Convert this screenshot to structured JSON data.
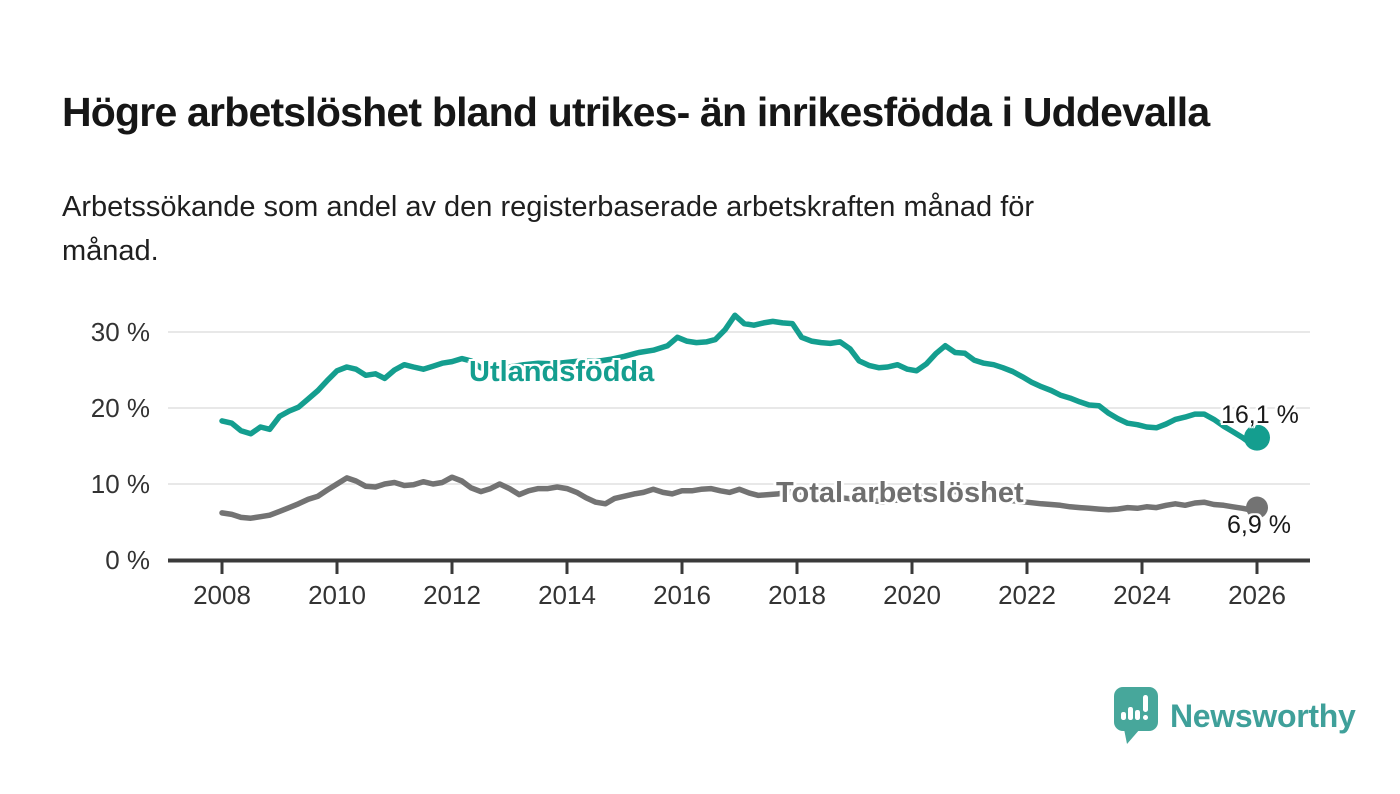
{
  "header": {
    "title": "Högre arbetslöshet bland utrikes- än inrikesfödda i Uddevalla",
    "subtitle": "Arbetssökande som andel av den registerbaserade arbetskraften månad för månad.",
    "subtitle_lines": [
      "Arbetssökande som andel av den registerbaserade arbetskraften månad för",
      "månad."
    ]
  },
  "colors": {
    "teal_series": "#149E8F",
    "gray_series": "#737373",
    "grid": "#E0E0E0",
    "axis": "#3A3A3A",
    "tick_text": "#333333",
    "title_text": "#161616",
    "end_label_text": "#1A1A1A",
    "brand_teal": "#3FA09A",
    "background": "#FFFFFF"
  },
  "chart_data": {
    "type": "line",
    "title": "Högre arbetslöshet bland utrikes- än inrikesfödda i Uddevalla",
    "xlabel": "",
    "ylabel": "Arbetssökande som andel av den registerbaserade arbetskraften (%)",
    "grid": true,
    "legend_position": "inline-labels",
    "x_axis": {
      "ticks": [
        2008,
        2010,
        2012,
        2014,
        2016,
        2018,
        2020,
        2022,
        2024,
        2026
      ],
      "tick_labels": [
        "2008",
        "2010",
        "2012",
        "2014",
        "2016",
        "2018",
        "2020",
        "2022",
        "2024",
        "2026"
      ],
      "range": [
        2007.05,
        2026.9
      ]
    },
    "y_axis": {
      "ticks": [
        0,
        10,
        20,
        30
      ],
      "tick_labels": [
        "0 %",
        "10 %",
        "20 %",
        "30 %"
      ],
      "range": [
        0,
        33
      ],
      "unit": "%"
    },
    "series": [
      {
        "name": "Utlandsfödda",
        "color": "#149E8F",
        "end_label": "16,1 %",
        "end_value": 16.1,
        "points": [
          [
            2008,
            18.3
          ],
          [
            2008.17,
            18
          ],
          [
            2008.33,
            17
          ],
          [
            2008.5,
            16.6
          ],
          [
            2008.67,
            17.5
          ],
          [
            2008.83,
            17.2
          ],
          [
            2009,
            18.9
          ],
          [
            2009.17,
            19.6
          ],
          [
            2009.33,
            20.1
          ],
          [
            2009.5,
            21.2
          ],
          [
            2009.67,
            22.3
          ],
          [
            2009.83,
            23.6
          ],
          [
            2010,
            24.9
          ],
          [
            2010.17,
            25.4
          ],
          [
            2010.33,
            25.1
          ],
          [
            2010.5,
            24.3
          ],
          [
            2010.67,
            24.5
          ],
          [
            2010.83,
            23.9
          ],
          [
            2011,
            25
          ],
          [
            2011.17,
            25.7
          ],
          [
            2011.33,
            25.4
          ],
          [
            2011.5,
            25.1
          ],
          [
            2011.67,
            25.5
          ],
          [
            2011.83,
            25.9
          ],
          [
            2012,
            26.1
          ],
          [
            2012.17,
            26.5
          ],
          [
            2012.33,
            26.2
          ],
          [
            2012.5,
            25.3
          ],
          [
            2012.67,
            24.9
          ],
          [
            2012.83,
            25.1
          ],
          [
            2013,
            25.4
          ],
          [
            2013.25,
            25.7
          ],
          [
            2013.5,
            25.9
          ],
          [
            2013.75,
            25.8
          ],
          [
            2014,
            26
          ],
          [
            2014.25,
            26.2
          ],
          [
            2014.5,
            26.1
          ],
          [
            2014.75,
            26.4
          ],
          [
            2015,
            26.8
          ],
          [
            2015.25,
            27.3
          ],
          [
            2015.5,
            27.6
          ],
          [
            2015.75,
            28.2
          ],
          [
            2015.92,
            29.3
          ],
          [
            2016.08,
            28.8
          ],
          [
            2016.25,
            28.6
          ],
          [
            2016.42,
            28.7
          ],
          [
            2016.58,
            29
          ],
          [
            2016.75,
            30.3
          ],
          [
            2016.92,
            32.2
          ],
          [
            2017.08,
            31.1
          ],
          [
            2017.25,
            30.9
          ],
          [
            2017.42,
            31.2
          ],
          [
            2017.58,
            31.4
          ],
          [
            2017.75,
            31.2
          ],
          [
            2017.92,
            31.1
          ],
          [
            2018.08,
            29.3
          ],
          [
            2018.25,
            28.8
          ],
          [
            2018.42,
            28.6
          ],
          [
            2018.58,
            28.5
          ],
          [
            2018.75,
            28.7
          ],
          [
            2018.92,
            27.8
          ],
          [
            2019.08,
            26.2
          ],
          [
            2019.25,
            25.6
          ],
          [
            2019.42,
            25.3
          ],
          [
            2019.58,
            25.4
          ],
          [
            2019.75,
            25.7
          ],
          [
            2019.92,
            25.1
          ],
          [
            2020.08,
            24.9
          ],
          [
            2020.25,
            25.8
          ],
          [
            2020.42,
            27.2
          ],
          [
            2020.58,
            28.2
          ],
          [
            2020.75,
            27.3
          ],
          [
            2020.92,
            27.2
          ],
          [
            2021.08,
            26.3
          ],
          [
            2021.25,
            25.9
          ],
          [
            2021.42,
            25.7
          ],
          [
            2021.58,
            25.3
          ],
          [
            2021.75,
            24.8
          ],
          [
            2021.92,
            24.1
          ],
          [
            2022.08,
            23.4
          ],
          [
            2022.25,
            22.8
          ],
          [
            2022.42,
            22.3
          ],
          [
            2022.58,
            21.7
          ],
          [
            2022.75,
            21.3
          ],
          [
            2022.92,
            20.8
          ],
          [
            2023.08,
            20.4
          ],
          [
            2023.25,
            20.3
          ],
          [
            2023.42,
            19.3
          ],
          [
            2023.58,
            18.6
          ],
          [
            2023.75,
            18
          ],
          [
            2023.92,
            17.8
          ],
          [
            2024.08,
            17.5
          ],
          [
            2024.25,
            17.4
          ],
          [
            2024.42,
            17.9
          ],
          [
            2024.58,
            18.5
          ],
          [
            2024.75,
            18.8
          ],
          [
            2024.92,
            19.2
          ],
          [
            2025.08,
            19.2
          ],
          [
            2025.25,
            18.5
          ],
          [
            2025.42,
            17.6
          ],
          [
            2025.58,
            16.9
          ],
          [
            2025.75,
            16.1
          ],
          [
            2025.88,
            15.4
          ],
          [
            2026,
            16.1
          ]
        ]
      },
      {
        "name": "Total arbetslöshet",
        "color": "#737373",
        "end_label": "6,9 %",
        "end_value": 6.9,
        "points": [
          [
            2008,
            6.2
          ],
          [
            2008.17,
            6
          ],
          [
            2008.33,
            5.6
          ],
          [
            2008.5,
            5.5
          ],
          [
            2008.67,
            5.7
          ],
          [
            2008.83,
            5.9
          ],
          [
            2009,
            6.4
          ],
          [
            2009.17,
            6.9
          ],
          [
            2009.33,
            7.4
          ],
          [
            2009.5,
            8
          ],
          [
            2009.67,
            8.4
          ],
          [
            2009.83,
            9.2
          ],
          [
            2010,
            10
          ],
          [
            2010.17,
            10.8
          ],
          [
            2010.33,
            10.4
          ],
          [
            2010.5,
            9.7
          ],
          [
            2010.67,
            9.6
          ],
          [
            2010.83,
            10
          ],
          [
            2011,
            10.2
          ],
          [
            2011.17,
            9.8
          ],
          [
            2011.33,
            9.9
          ],
          [
            2011.5,
            10.3
          ],
          [
            2011.67,
            10
          ],
          [
            2011.83,
            10.2
          ],
          [
            2012,
            10.9
          ],
          [
            2012.17,
            10.4
          ],
          [
            2012.33,
            9.5
          ],
          [
            2012.5,
            9
          ],
          [
            2012.67,
            9.4
          ],
          [
            2012.83,
            10
          ],
          [
            2013,
            9.4
          ],
          [
            2013.17,
            8.6
          ],
          [
            2013.33,
            9.1
          ],
          [
            2013.5,
            9.4
          ],
          [
            2013.67,
            9.4
          ],
          [
            2013.83,
            9.6
          ],
          [
            2014,
            9.4
          ],
          [
            2014.17,
            8.9
          ],
          [
            2014.33,
            8.2
          ],
          [
            2014.5,
            7.6
          ],
          [
            2014.67,
            7.4
          ],
          [
            2014.83,
            8.1
          ],
          [
            2015,
            8.4
          ],
          [
            2015.17,
            8.7
          ],
          [
            2015.33,
            8.9
          ],
          [
            2015.5,
            9.3
          ],
          [
            2015.67,
            8.9
          ],
          [
            2015.83,
            8.7
          ],
          [
            2016,
            9.1
          ],
          [
            2016.17,
            9.1
          ],
          [
            2016.33,
            9.3
          ],
          [
            2016.5,
            9.4
          ],
          [
            2016.67,
            9.1
          ],
          [
            2016.83,
            8.9
          ],
          [
            2017,
            9.3
          ],
          [
            2017.17,
            8.8
          ],
          [
            2017.33,
            8.5
          ],
          [
            2017.5,
            8.6
          ],
          [
            2017.67,
            8.7
          ],
          [
            2017.83,
            8.9
          ],
          [
            2018,
            9
          ],
          [
            2018.25,
            8.7
          ],
          [
            2018.5,
            8.4
          ],
          [
            2018.75,
            8.2
          ],
          [
            2019,
            8
          ],
          [
            2019.25,
            7.8
          ],
          [
            2019.5,
            7.7
          ],
          [
            2019.75,
            7.9
          ],
          [
            2020,
            8.3
          ],
          [
            2020.25,
            8.9
          ],
          [
            2020.5,
            9.3
          ],
          [
            2020.75,
            9
          ],
          [
            2021,
            8.7
          ],
          [
            2021.25,
            8.4
          ],
          [
            2021.5,
            8.1
          ],
          [
            2021.75,
            7.8
          ],
          [
            2022,
            7.6
          ],
          [
            2022.25,
            7.4
          ],
          [
            2022.42,
            7.3
          ],
          [
            2022.58,
            7.2
          ],
          [
            2022.75,
            7
          ],
          [
            2022.92,
            6.9
          ],
          [
            2023.08,
            6.8
          ],
          [
            2023.25,
            6.7
          ],
          [
            2023.42,
            6.6
          ],
          [
            2023.58,
            6.7
          ],
          [
            2023.75,
            6.9
          ],
          [
            2023.92,
            6.8
          ],
          [
            2024.08,
            7
          ],
          [
            2024.25,
            6.9
          ],
          [
            2024.42,
            7.2
          ],
          [
            2024.58,
            7.4
          ],
          [
            2024.75,
            7.2
          ],
          [
            2024.92,
            7.5
          ],
          [
            2025.08,
            7.6
          ],
          [
            2025.25,
            7.3
          ],
          [
            2025.42,
            7.2
          ],
          [
            2025.58,
            7
          ],
          [
            2025.75,
            6.8
          ],
          [
            2025.88,
            6.6
          ],
          [
            2026,
            6.9
          ]
        ]
      }
    ]
  },
  "footer": {
    "brand": "Newsworthy"
  }
}
